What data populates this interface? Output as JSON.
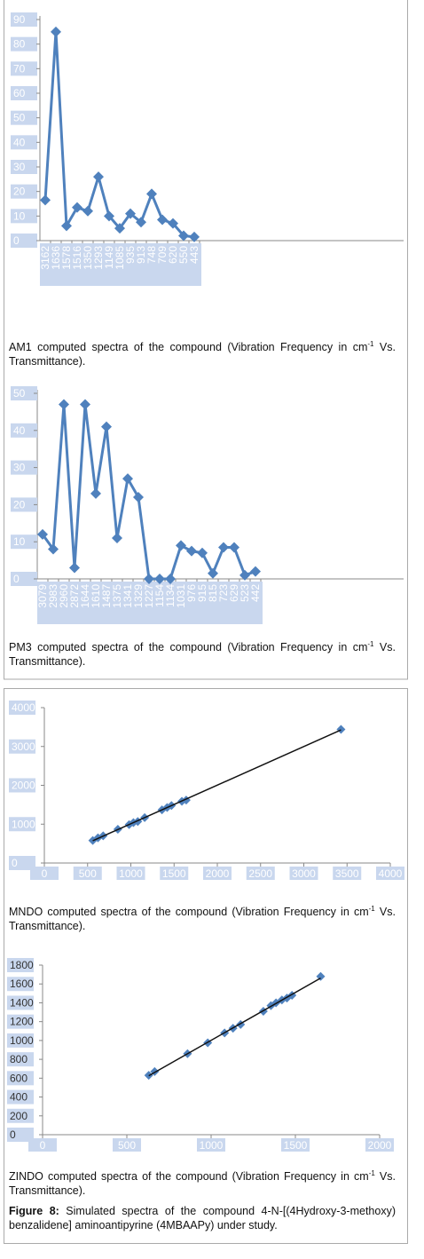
{
  "chart_data": [
    {
      "type": "line",
      "color": "#4f81bd",
      "categories": [
        "3162",
        "1636",
        "1578",
        "1516",
        "1350",
        "1293",
        "1149",
        "1085",
        "935",
        "913",
        "748",
        "709",
        "620",
        "550",
        "443"
      ],
      "values": [
        16.5,
        85,
        6,
        13.5,
        12,
        26,
        10,
        5,
        11,
        7.5,
        19,
        8.5,
        7,
        2,
        1.5
      ],
      "ylim": [
        0,
        90
      ],
      "yticks": [
        0,
        10,
        20,
        30,
        40,
        50,
        60,
        70,
        80,
        90
      ],
      "caption": {
        "before": "AM1 computed spectra of the compound (Vibration Frequency in cm",
        "sup": "-1",
        "after": " Vs. Transmittance)."
      }
    },
    {
      "type": "line",
      "color": "#4f81bd",
      "categories": [
        "3079",
        "2983",
        "2960",
        "2872",
        "1644",
        "1610",
        "1487",
        "1375",
        "1341",
        "1329",
        "1227",
        "1154",
        "1134",
        "1031",
        "976",
        "915",
        "815",
        "723",
        "629",
        "523",
        "442"
      ],
      "values": [
        12,
        8,
        47,
        3,
        47,
        23,
        41,
        11,
        27,
        22,
        0,
        0,
        0,
        9,
        7.5,
        7,
        1.5,
        8.5,
        8.5,
        1,
        2
      ],
      "ylim": [
        0,
        50
      ],
      "yticks": [
        0,
        10,
        20,
        30,
        40,
        50
      ],
      "caption": {
        "before": "PM3 computed spectra of the compound (Vibration Frequency in cm",
        "sup": "-1",
        "after": " Vs. Transmittance)."
      }
    },
    {
      "type": "scatter",
      "color": "#4f81bd",
      "trendline": true,
      "x": [
        560,
        620,
        680,
        850,
        980,
        1030,
        1080,
        1160,
        1360,
        1420,
        1470,
        1590,
        1640,
        3430
      ],
      "values": [
        580,
        650,
        700,
        870,
        990,
        1040,
        1070,
        1170,
        1370,
        1430,
        1480,
        1590,
        1620,
        3440
      ],
      "xlim": [
        0,
        4000
      ],
      "xticks": [
        0,
        500,
        1000,
        1500,
        2000,
        2500,
        3000,
        3500,
        4000
      ],
      "ylim": [
        0,
        4000
      ],
      "yticks": [
        0,
        1000,
        2000,
        3000,
        4000
      ],
      "caption": {
        "before": "MNDO computed spectra of the compound (Vibration Frequency in cm",
        "sup": "-1",
        "after": " Vs. Transmittance)."
      }
    },
    {
      "type": "scatter",
      "color": "#4f81bd",
      "trendline": true,
      "x": [
        630,
        665,
        860,
        980,
        1080,
        1130,
        1175,
        1310,
        1355,
        1385,
        1420,
        1450,
        1480,
        1650
      ],
      "values": [
        630,
        670,
        860,
        975,
        1080,
        1130,
        1170,
        1310,
        1370,
        1400,
        1430,
        1450,
        1480,
        1680
      ],
      "xlim": [
        0,
        2000
      ],
      "xticks": [
        0,
        500,
        1000,
        1500,
        2000
      ],
      "ylim": [
        0,
        1800
      ],
      "yticks": [
        0,
        200,
        400,
        600,
        800,
        1000,
        1200,
        1400,
        1600,
        1800
      ],
      "caption": {
        "before": "ZINDO computed spectra of the compound (Vibration Frequency in cm",
        "sup": "-1",
        "after": " Vs. Transmittance)."
      }
    }
  ],
  "figure_caption": {
    "label": "Figure 8:",
    "text": " Simulated spectra of the compound 4-N-[(4Hydroxy-3-methoxy) benzalidene] aminoantipyrine (4MBAAPy) under study."
  }
}
